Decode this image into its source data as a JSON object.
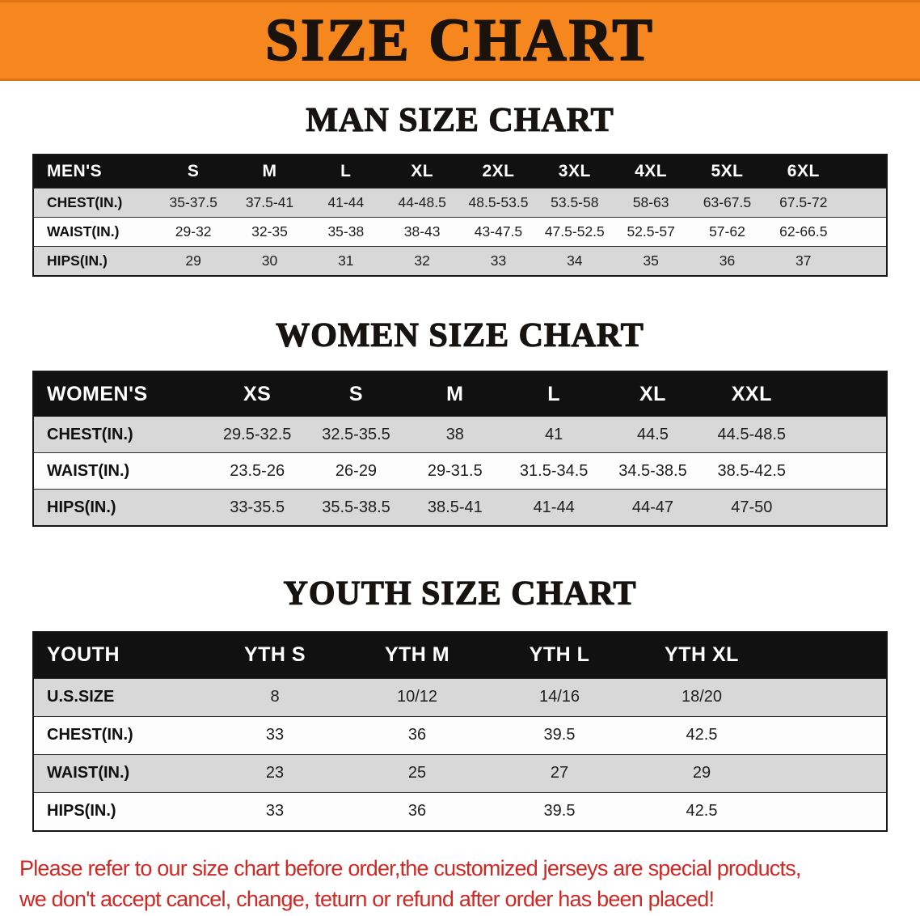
{
  "banner": {
    "title": "SIZE CHART",
    "background_color": "#f6871e",
    "text_color": "#1a130d"
  },
  "sections": [
    {
      "id": "mens",
      "heading": "MAN SIZE CHART",
      "table": {
        "header": [
          "MEN'S",
          "S",
          "M",
          "L",
          "XL",
          "2XL",
          "3XL",
          "4XL",
          "5XL",
          "6XL"
        ],
        "rows": [
          {
            "label": "CHEST(IN.)",
            "values": [
              "35-37.5",
              "37.5-41",
              "41-44",
              "44-48.5",
              "48.5-53.5",
              "53.5-58",
              "58-63",
              "63-67.5",
              "67.5-72"
            ]
          },
          {
            "label": "WAIST(IN.)",
            "values": [
              "29-32",
              "32-35",
              "35-38",
              "38-43",
              "43-47.5",
              "47.5-52.5",
              "52.5-57",
              "57-62",
              "62-66.5"
            ]
          },
          {
            "label": "HIPS(IN.)",
            "values": [
              "29",
              "30",
              "31",
              "32",
              "33",
              "34",
              "35",
              "36",
              "37"
            ]
          }
        ]
      }
    },
    {
      "id": "womens",
      "heading": "WOMEN SIZE CHART",
      "table": {
        "header": [
          "WOMEN'S",
          "XS",
          "S",
          "M",
          "L",
          "XL",
          "XXL"
        ],
        "rows": [
          {
            "label": "CHEST(IN.)",
            "values": [
              "29.5-32.5",
              "32.5-35.5",
              "38",
              "41",
              "44.5",
              "44.5-48.5"
            ]
          },
          {
            "label": "WAIST(IN.)",
            "values": [
              "23.5-26",
              "26-29",
              "29-31.5",
              "31.5-34.5",
              "34.5-38.5",
              "38.5-42.5"
            ]
          },
          {
            "label": "HIPS(IN.)",
            "values": [
              "33-35.5",
              "35.5-38.5",
              "38.5-41",
              "41-44",
              "44-47",
              "47-50"
            ]
          }
        ]
      }
    },
    {
      "id": "youth",
      "heading": "YOUTH SIZE CHART",
      "table": {
        "header": [
          "YOUTH",
          "YTH S",
          "YTH M",
          "YTH L",
          "YTH XL"
        ],
        "rows": [
          {
            "label": "U.S.SIZE",
            "values": [
              "8",
              "10/12",
              "14/16",
              "18/20"
            ]
          },
          {
            "label": "CHEST(IN.)",
            "values": [
              "33",
              "36",
              "39.5",
              "42.5"
            ]
          },
          {
            "label": "WAIST(IN.)",
            "values": [
              "23",
              "25",
              "27",
              "29"
            ]
          },
          {
            "label": "HIPS(IN.)",
            "values": [
              "33",
              "36",
              "39.5",
              "42.5"
            ]
          }
        ]
      }
    }
  ],
  "footnote": {
    "color": "#cd2a26",
    "lines": [
      "Please refer to our size chart before order,the customized jerseys are special products,",
      "we don't accept cancel, change, teturn or refund after order has been placed!"
    ]
  }
}
